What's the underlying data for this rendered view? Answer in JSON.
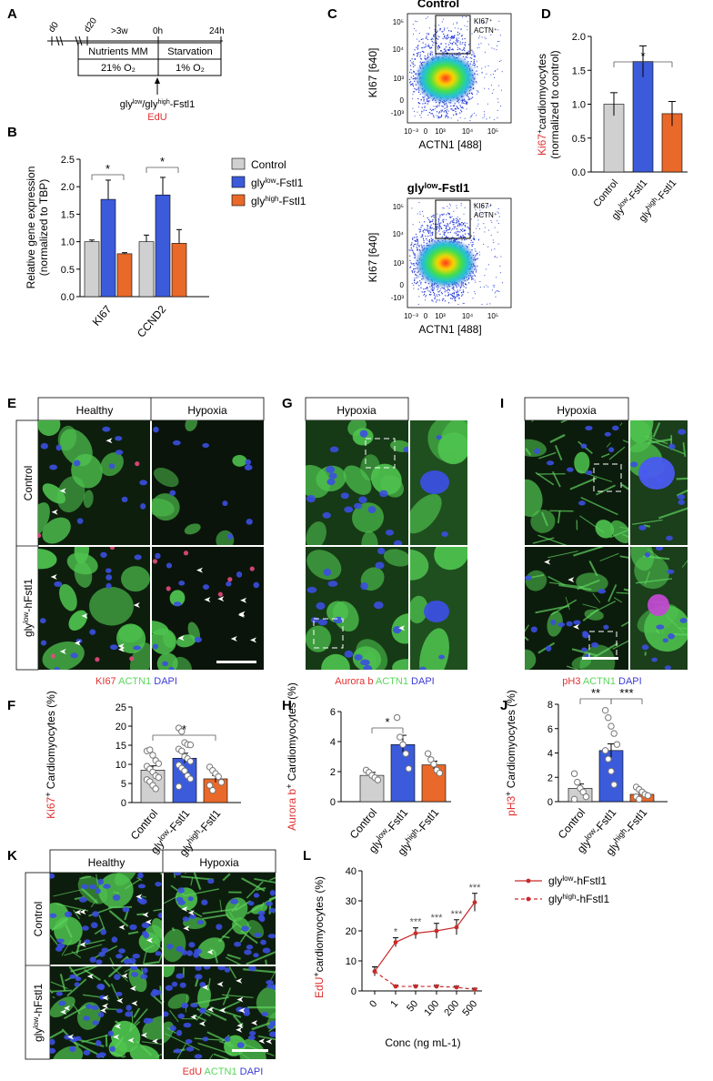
{
  "colors": {
    "control": "#d0d0d0",
    "gly_low": "#3b5bdb",
    "gly_high": "#e8692a",
    "red_label": "#e03131",
    "green_label": "#5cd65c",
    "blue_label": "#3b3bd6"
  },
  "panels": {
    "A": {
      "letter": "A",
      "d0": "d0",
      "d20": "d20",
      "gt3w": ">3w",
      "h0": "0h",
      "h24": "24h",
      "nutrients": "Nutrients MM",
      "starvation": "Starvation",
      "o2_21": "21% O₂",
      "o2_1": "1% O₂",
      "treat_pre": "gly",
      "treat_low": "low",
      "treat_mid": "/gly",
      "treat_high": "high",
      "treat_post": "-Fstl1",
      "edu": "EdU"
    },
    "C": {
      "letter": "C",
      "title_control": "Control",
      "title_low_pre": "gly",
      "title_low_sup": "low",
      "title_low_post": "-Fstl1",
      "gate1": "KI67⁺",
      "gate2": "ACTN⁺",
      "ylabel": "KI67 [640]",
      "xlabel": "ACTN1 [488]",
      "xticks": [
        "10⁻³",
        "0",
        "10³",
        "10⁴",
        "10⁵"
      ],
      "yticks": [
        "10⁵",
        "10⁴",
        "10³",
        "0",
        "-10³"
      ]
    },
    "E": {
      "letter": "E",
      "col1": "Healthy",
      "col2": "Hypoxia",
      "row1": "Control",
      "row2_pre": "gly",
      "row2_sup": "low",
      "row2_post": "-hFstl1",
      "stain1": "KI67",
      "stain2": "ACTN1",
      "stain3": "DAPI"
    },
    "G": {
      "letter": "G",
      "col1": "Hypoxia",
      "stain1": "Aurora b",
      "stain2": "ACTN1",
      "stain3": "DAPI"
    },
    "I": {
      "letter": "I",
      "col1": "Hypoxia",
      "stain1": "pH3",
      "stain2": "ACTN1",
      "stain3": "DAPI"
    },
    "K": {
      "letter": "K",
      "col1": "Healthy",
      "col2": "Hypoxia",
      "row1": "Control",
      "row2_pre": "gly",
      "row2_sup": "low",
      "row2_post": "-hFstl1",
      "stain1": "EdU",
      "stain2": "ACTN1",
      "stain3": "DAPI"
    }
  },
  "chart_data": [
    {
      "id": "B",
      "type": "bar",
      "letter": "B",
      "categories": [
        "KI67",
        "CCND2"
      ],
      "series": [
        {
          "name": "Control",
          "values": [
            1.0,
            1.0
          ],
          "errors": [
            0.03,
            0.12
          ]
        },
        {
          "name_pre": "gly",
          "name_sup": "low",
          "name_post": "-Fstl1",
          "values": [
            1.77,
            1.85
          ],
          "errors": [
            0.35,
            0.32
          ]
        },
        {
          "name_pre": "gly",
          "name_sup": "high",
          "name_post": "-Fstl1",
          "values": [
            0.78,
            0.97
          ],
          "errors": [
            0.02,
            0.25
          ]
        }
      ],
      "ylabel1": "Relative gene expression",
      "ylabel2": "(normalized to TBP)",
      "ylim": [
        0,
        2.5
      ],
      "yticks": [
        "0.0",
        "0.5",
        "1.0",
        "1.5",
        "2.0",
        "2.5"
      ],
      "significance": [
        "*",
        "*"
      ],
      "legend_position": "right"
    },
    {
      "id": "D",
      "type": "bar",
      "letter": "D",
      "categories": [
        "Control",
        "gly|low|-Fstl1",
        "gly|high|-Fstl1"
      ],
      "values": [
        1.0,
        1.63,
        0.86
      ],
      "errors": [
        0.17,
        0.23,
        0.18
      ],
      "ylabel1_pre": "Ki67",
      "ylabel1_sup": "+",
      "ylabel1_post": "cardiomyocytes",
      "ylabel2": "(normalized to control)",
      "ylim": [
        0,
        2.0
      ],
      "yticks": [
        "0.0",
        "0.5",
        "1.0",
        "1.5",
        "2.0"
      ],
      "significance": [
        "*"
      ]
    },
    {
      "id": "F",
      "type": "bar",
      "letter": "F",
      "categories": [
        "Control",
        "gly|low|-Fstl1",
        "gly|high|-Fstl1"
      ],
      "values": [
        8.5,
        11.6,
        6.2
      ],
      "errors": [
        1.1,
        1.3,
        0.9
      ],
      "points": [
        [
          13.5,
          13.8,
          12.4,
          11,
          10.2,
          9.5,
          8.8,
          8,
          7,
          6.6,
          6,
          5.5,
          4.5,
          3.6
        ],
        [
          19.5,
          18.6,
          15.7,
          15.2,
          15.1,
          14,
          13.5,
          12,
          11.5,
          10.8,
          9.8,
          9,
          8.3,
          7,
          6.2,
          4.2
        ],
        [
          9.3,
          8.4,
          7.6,
          6.8,
          5.3,
          4.5,
          3.2
        ]
      ],
      "ylabel_pre": "Ki67",
      "ylabel_sup": "+",
      "ylabel_post": " Cardiomyocytes (%)",
      "ylim": [
        0,
        25
      ],
      "yticks": [
        "0",
        "5",
        "10",
        "15",
        "20",
        "25"
      ],
      "significance": [
        "*"
      ]
    },
    {
      "id": "H",
      "type": "bar",
      "letter": "H",
      "categories": [
        "Control",
        "gly|low|-Fstl1",
        "gly|high|-Fstl1"
      ],
      "values": [
        1.75,
        3.8,
        2.45
      ],
      "errors": [
        0.2,
        0.62,
        0.25
      ],
      "points": [
        [
          2.1,
          1.95,
          1.75,
          1.6,
          1.45
        ],
        [
          5.6,
          4.3,
          3.8,
          3.2,
          2.2
        ],
        [
          3.2,
          2.8,
          2.5,
          2.1,
          1.9
        ]
      ],
      "ylabel_pre": "Aurora b",
      "ylabel_sup": "+",
      "ylabel_post": " Cardiomyocytes (%)",
      "ylim": [
        0,
        6
      ],
      "yticks": [
        "0",
        "2",
        "4",
        "6"
      ],
      "significance": [
        "*"
      ]
    },
    {
      "id": "J",
      "type": "bar",
      "letter": "J",
      "categories": [
        "Control",
        "gly|low|-Fstl1",
        "gly|high|-Fstl1"
      ],
      "values": [
        1.1,
        4.2,
        0.6
      ],
      "errors": [
        0.35,
        0.55,
        0.12
      ],
      "points": [
        [
          2.3,
          1.6,
          1.1,
          0.8,
          0.4,
          0.2
        ],
        [
          7.5,
          6.9,
          6.2,
          5.6,
          4.7,
          4.2,
          3.5,
          2.5,
          1.4
        ],
        [
          1.2,
          1,
          0.8,
          0.6,
          0.5,
          0.4,
          0.2
        ]
      ],
      "ylabel_pre": "pH3",
      "ylabel_sup": "+",
      "ylabel_post": " Cardiomyocytes (%)",
      "ylim": [
        0,
        8
      ],
      "yticks": [
        "0",
        "2",
        "4",
        "6",
        "8"
      ],
      "significance": [
        "**",
        "***"
      ]
    },
    {
      "id": "L",
      "type": "line",
      "letter": "L",
      "x": [
        "0",
        "1",
        "50",
        "100",
        "200",
        "500"
      ],
      "series": [
        {
          "name_pre": "gly",
          "name_sup": "low",
          "name_post": "-hFstl1",
          "values": [
            6.5,
            16.2,
            19.2,
            20,
            21.2,
            29.5
          ],
          "errors": [
            1.5,
            1.5,
            1.8,
            2.5,
            2.5,
            3
          ],
          "line": "solid"
        },
        {
          "name_pre": "gly",
          "name_sup": "high",
          "name_post": "-hFstl1",
          "values": [
            6.5,
            1.5,
            1.5,
            1.5,
            1.2,
            0.5
          ],
          "errors": [
            1.5,
            0.4,
            0.4,
            0.4,
            0.4,
            0.4
          ],
          "line": "dashed"
        }
      ],
      "significance": [
        "",
        "*",
        "***",
        "***",
        "***",
        "***"
      ],
      "ylabel_pre": "EdU",
      "ylabel_sup": "+",
      "ylabel_post": "cardiomyocytes (%)",
      "xlabel": "Conc (ng mL-1)",
      "ylim": [
        0,
        40
      ],
      "yticks": [
        "0",
        "10",
        "20",
        "30",
        "40"
      ]
    }
  ]
}
